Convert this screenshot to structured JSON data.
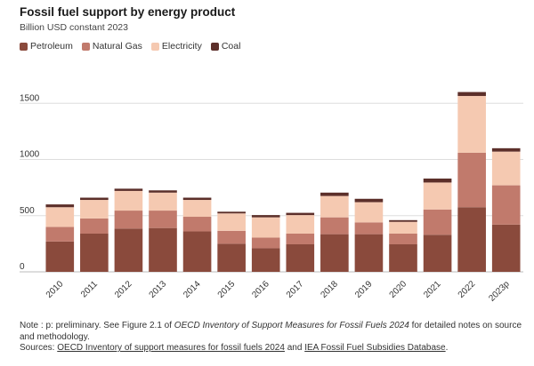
{
  "chart_data": {
    "type": "bar",
    "stacked": true,
    "title": "Fossil fuel support by energy product",
    "subtitle": "Billion USD constant 2023",
    "categories": [
      "2010",
      "2011",
      "2012",
      "2013",
      "2014",
      "2015",
      "2016",
      "2017",
      "2018",
      "2019",
      "2020",
      "2021",
      "2022",
      "2023p"
    ],
    "series": [
      {
        "name": "Petroleum",
        "color": "#8a4a3c",
        "values": [
          270,
          340,
          385,
          390,
          360,
          250,
          210,
          245,
          335,
          335,
          245,
          330,
          575,
          420
        ]
      },
      {
        "name": "Natural Gas",
        "color": "#c17a6c",
        "values": [
          130,
          135,
          160,
          155,
          130,
          115,
          95,
          95,
          150,
          105,
          95,
          225,
          485,
          350
        ]
      },
      {
        "name": "Electricity",
        "color": "#f5c9b1",
        "values": [
          175,
          165,
          175,
          160,
          150,
          155,
          180,
          165,
          190,
          180,
          105,
          240,
          505,
          300
        ]
      },
      {
        "name": "Coal",
        "color": "#5c2f2a",
        "values": [
          25,
          20,
          20,
          20,
          20,
          15,
          20,
          20,
          30,
          30,
          15,
          35,
          35,
          30
        ]
      }
    ],
    "yticks": [
      0,
      500,
      1000,
      1500
    ],
    "ylim": [
      0,
      1650
    ],
    "grid": true,
    "legend": "top-left"
  },
  "note": {
    "line1_prefix": "Note : p: preliminary. See Figure 2.1 of ",
    "line1_italic": "OECD Inventory of Support Measures for Fossil Fuels 2024",
    "line1_suffix": " for detailed notes on source and methodology.",
    "sources_prefix": "Sources: ",
    "sources_link1": "OECD Inventory of support measures for fossil fuels 2024",
    "sources_and": " and ",
    "sources_link2": "IEA Fossil Fuel Subsidies Database",
    "sources_end": "."
  }
}
